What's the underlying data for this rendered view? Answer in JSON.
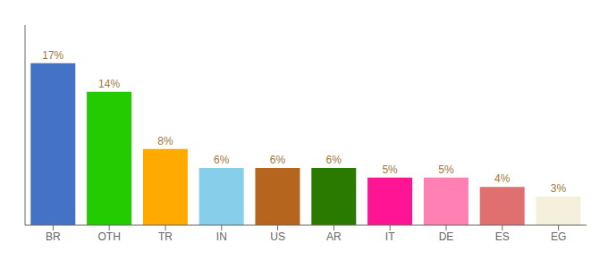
{
  "chart_data": {
    "type": "bar",
    "categories": [
      "BR",
      "OTH",
      "TR",
      "IN",
      "US",
      "AR",
      "IT",
      "DE",
      "ES",
      "EG"
    ],
    "values": [
      17,
      14,
      8,
      6,
      6,
      6,
      5,
      5,
      4,
      3
    ],
    "value_labels": [
      "17%",
      "14%",
      "8%",
      "6%",
      "6%",
      "6%",
      "5%",
      "5%",
      "4%",
      "3%"
    ],
    "colors": [
      "#4472c4",
      "#22cc00",
      "#ffaa00",
      "#87ceeb",
      "#b5651d",
      "#2a7a00",
      "#ff1493",
      "#ff80b3",
      "#e07070",
      "#f5f0dc"
    ],
    "ylim": [
      0,
      21
    ],
    "data_labels": true,
    "tick_labels": "x",
    "grid": false
  }
}
